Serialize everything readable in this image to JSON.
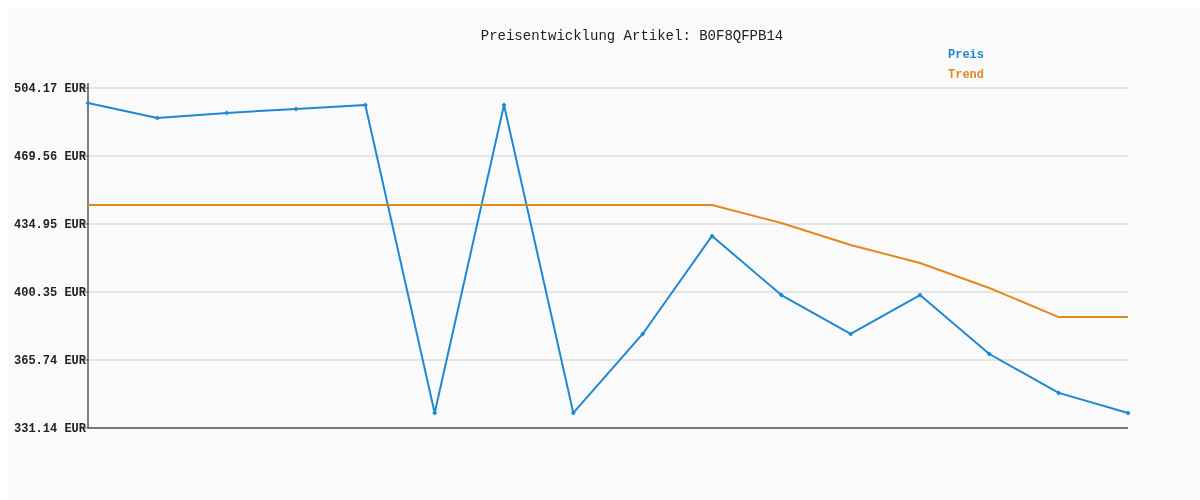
{
  "chart_data": {
    "type": "line",
    "title": "Preisentwicklung Artikel: B0F8QFPB14",
    "categories": [
      null,
      null,
      null,
      null,
      null,
      null,
      null,
      null,
      null,
      null,
      null,
      null,
      null,
      null,
      null,
      null
    ],
    "series": [
      {
        "name": "Preis",
        "color": "#1f88d2",
        "marker": "diamond",
        "values": [
          496.5,
          488.9,
          491.5,
          493.5,
          495.5,
          338.8,
          495.5,
          338.8,
          379.0,
          428.9,
          398.8,
          379.0,
          398.8,
          368.8,
          349.0,
          338.8
        ]
      },
      {
        "name": "Trend",
        "color": "#e08a1e",
        "marker": "none",
        "values": [
          444.6,
          444.6,
          444.6,
          444.6,
          444.6,
          444.6,
          444.6,
          444.6,
          444.6,
          444.6,
          435.5,
          424.3,
          415.1,
          402.4,
          387.6,
          387.6
        ]
      }
    ],
    "ylim": [
      331.14,
      504.17
    ],
    "yticks": [
      {
        "value": 331.14,
        "label": "331.14 EUR"
      },
      {
        "value": 365.74,
        "label": "365.74 EUR"
      },
      {
        "value": 400.35,
        "label": "400.35 EUR"
      },
      {
        "value": 434.95,
        "label": "434.95 EUR"
      },
      {
        "value": 469.56,
        "label": "469.56 EUR"
      },
      {
        "value": 504.17,
        "label": "504.17 EUR"
      }
    ],
    "grid": "y",
    "legend": "top right"
  }
}
